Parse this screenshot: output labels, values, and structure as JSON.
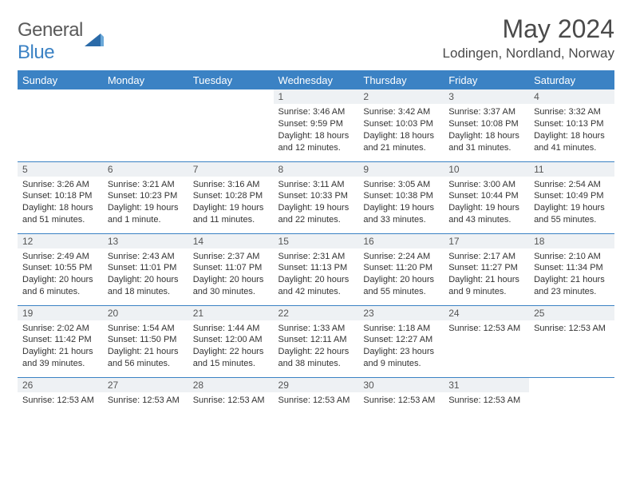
{
  "brand": {
    "text_gray": "General",
    "text_blue": "Blue"
  },
  "title": "May 2024",
  "location": "Lodingen, Nordland, Norway",
  "colors": {
    "header_bg": "#3b82c4",
    "header_text": "#ffffff",
    "daynum_bg": "#eef1f4",
    "border": "#3b82c4",
    "brand_gray": "#5a5a5a",
    "brand_blue": "#3b82c4"
  },
  "weekdays": [
    "Sunday",
    "Monday",
    "Tuesday",
    "Wednesday",
    "Thursday",
    "Friday",
    "Saturday"
  ],
  "weeks": [
    [
      {
        "n": "",
        "lines": []
      },
      {
        "n": "",
        "lines": []
      },
      {
        "n": "",
        "lines": []
      },
      {
        "n": "1",
        "lines": [
          "Sunrise: 3:46 AM",
          "Sunset: 9:59 PM",
          "Daylight: 18 hours and 12 minutes."
        ]
      },
      {
        "n": "2",
        "lines": [
          "Sunrise: 3:42 AM",
          "Sunset: 10:03 PM",
          "Daylight: 18 hours and 21 minutes."
        ]
      },
      {
        "n": "3",
        "lines": [
          "Sunrise: 3:37 AM",
          "Sunset: 10:08 PM",
          "Daylight: 18 hours and 31 minutes."
        ]
      },
      {
        "n": "4",
        "lines": [
          "Sunrise: 3:32 AM",
          "Sunset: 10:13 PM",
          "Daylight: 18 hours and 41 minutes."
        ]
      }
    ],
    [
      {
        "n": "5",
        "lines": [
          "Sunrise: 3:26 AM",
          "Sunset: 10:18 PM",
          "Daylight: 18 hours and 51 minutes."
        ]
      },
      {
        "n": "6",
        "lines": [
          "Sunrise: 3:21 AM",
          "Sunset: 10:23 PM",
          "Daylight: 19 hours and 1 minute."
        ]
      },
      {
        "n": "7",
        "lines": [
          "Sunrise: 3:16 AM",
          "Sunset: 10:28 PM",
          "Daylight: 19 hours and 11 minutes."
        ]
      },
      {
        "n": "8",
        "lines": [
          "Sunrise: 3:11 AM",
          "Sunset: 10:33 PM",
          "Daylight: 19 hours and 22 minutes."
        ]
      },
      {
        "n": "9",
        "lines": [
          "Sunrise: 3:05 AM",
          "Sunset: 10:38 PM",
          "Daylight: 19 hours and 33 minutes."
        ]
      },
      {
        "n": "10",
        "lines": [
          "Sunrise: 3:00 AM",
          "Sunset: 10:44 PM",
          "Daylight: 19 hours and 43 minutes."
        ]
      },
      {
        "n": "11",
        "lines": [
          "Sunrise: 2:54 AM",
          "Sunset: 10:49 PM",
          "Daylight: 19 hours and 55 minutes."
        ]
      }
    ],
    [
      {
        "n": "12",
        "lines": [
          "Sunrise: 2:49 AM",
          "Sunset: 10:55 PM",
          "Daylight: 20 hours and 6 minutes."
        ]
      },
      {
        "n": "13",
        "lines": [
          "Sunrise: 2:43 AM",
          "Sunset: 11:01 PM",
          "Daylight: 20 hours and 18 minutes."
        ]
      },
      {
        "n": "14",
        "lines": [
          "Sunrise: 2:37 AM",
          "Sunset: 11:07 PM",
          "Daylight: 20 hours and 30 minutes."
        ]
      },
      {
        "n": "15",
        "lines": [
          "Sunrise: 2:31 AM",
          "Sunset: 11:13 PM",
          "Daylight: 20 hours and 42 minutes."
        ]
      },
      {
        "n": "16",
        "lines": [
          "Sunrise: 2:24 AM",
          "Sunset: 11:20 PM",
          "Daylight: 20 hours and 55 minutes."
        ]
      },
      {
        "n": "17",
        "lines": [
          "Sunrise: 2:17 AM",
          "Sunset: 11:27 PM",
          "Daylight: 21 hours and 9 minutes."
        ]
      },
      {
        "n": "18",
        "lines": [
          "Sunrise: 2:10 AM",
          "Sunset: 11:34 PM",
          "Daylight: 21 hours and 23 minutes."
        ]
      }
    ],
    [
      {
        "n": "19",
        "lines": [
          "Sunrise: 2:02 AM",
          "Sunset: 11:42 PM",
          "Daylight: 21 hours and 39 minutes."
        ]
      },
      {
        "n": "20",
        "lines": [
          "Sunrise: 1:54 AM",
          "Sunset: 11:50 PM",
          "Daylight: 21 hours and 56 minutes."
        ]
      },
      {
        "n": "21",
        "lines": [
          "Sunrise: 1:44 AM",
          "Sunset: 12:00 AM",
          "Daylight: 22 hours and 15 minutes."
        ]
      },
      {
        "n": "22",
        "lines": [
          "Sunrise: 1:33 AM",
          "Sunset: 12:11 AM",
          "Daylight: 22 hours and 38 minutes."
        ]
      },
      {
        "n": "23",
        "lines": [
          "Sunrise: 1:18 AM",
          "Sunset: 12:27 AM",
          "Daylight: 23 hours and 9 minutes."
        ]
      },
      {
        "n": "24",
        "lines": [
          "Sunrise: 12:53 AM"
        ]
      },
      {
        "n": "25",
        "lines": [
          "Sunrise: 12:53 AM"
        ]
      }
    ],
    [
      {
        "n": "26",
        "lines": [
          "Sunrise: 12:53 AM"
        ]
      },
      {
        "n": "27",
        "lines": [
          "Sunrise: 12:53 AM"
        ]
      },
      {
        "n": "28",
        "lines": [
          "Sunrise: 12:53 AM"
        ]
      },
      {
        "n": "29",
        "lines": [
          "Sunrise: 12:53 AM"
        ]
      },
      {
        "n": "30",
        "lines": [
          "Sunrise: 12:53 AM"
        ]
      },
      {
        "n": "31",
        "lines": [
          "Sunrise: 12:53 AM"
        ]
      },
      {
        "n": "",
        "lines": []
      }
    ]
  ]
}
